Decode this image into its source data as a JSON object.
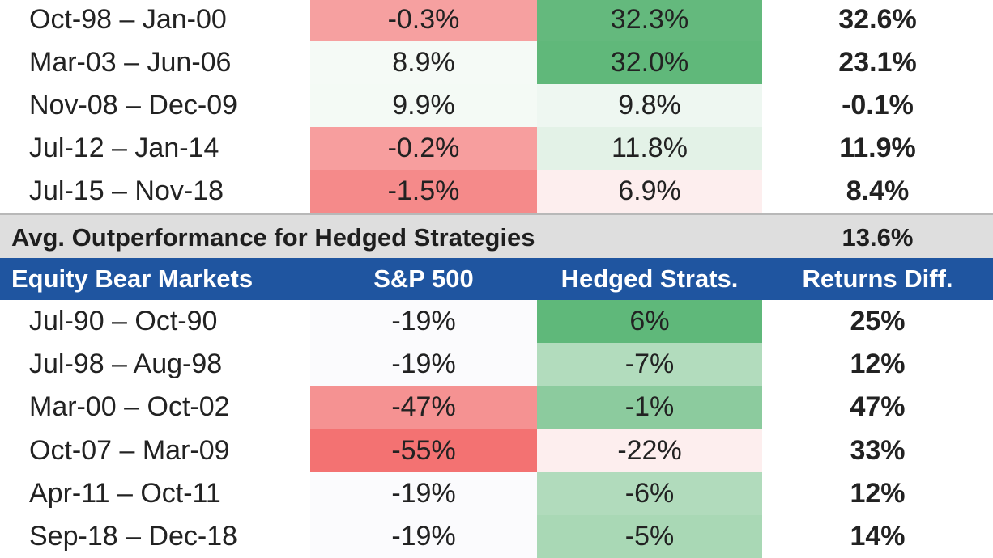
{
  "chart_data": {
    "type": "table",
    "top_rows": [
      {
        "period": "Oct-98 – Jan-00",
        "sp500": "-0.3%",
        "hedged": "32.3%",
        "diff": "32.6%"
      },
      {
        "period": "Mar-03 – Jun-06",
        "sp500": "8.9%",
        "hedged": "32.0%",
        "diff": "23.1%"
      },
      {
        "period": "Nov-08 – Dec-09",
        "sp500": "9.9%",
        "hedged": "9.8%",
        "diff": "-0.1%"
      },
      {
        "period": "Jul-12 – Jan-14",
        "sp500": "-0.2%",
        "hedged": "11.8%",
        "diff": "11.9%"
      },
      {
        "period": "Jul-15 – Nov-18",
        "sp500": "-1.5%",
        "hedged": "6.9%",
        "diff": "8.4%"
      }
    ],
    "summary": {
      "label": "Avg. Outperformance for Hedged Strategies",
      "value": "13.6%"
    },
    "header": {
      "period": "Equity Bear Markets",
      "sp500": "S&P 500",
      "hedged": "Hedged Strats.",
      "diff": "Returns Diff."
    },
    "bottom_rows": [
      {
        "period": "Jul-90 – Oct-90",
        "sp500": "-19%",
        "hedged": "6%",
        "diff": "25%"
      },
      {
        "period": "Jul-98 – Aug-98",
        "sp500": "-19%",
        "hedged": "-7%",
        "diff": "12%"
      },
      {
        "period": "Mar-00 – Oct-02",
        "sp500": "-47%",
        "hedged": "-1%",
        "diff": "47%"
      },
      {
        "period": "Oct-07 – Mar-09",
        "sp500": "-55%",
        "hedged": "-22%",
        "diff": "33%"
      },
      {
        "period": "Apr-11 – Oct-11",
        "sp500": "-19%",
        "hedged": "-6%",
        "diff": "12%"
      },
      {
        "period": "Sep-18 – Dec-18",
        "sp500": "-19%",
        "hedged": "-5%",
        "diff": "14%"
      }
    ]
  },
  "colors": {
    "header_bg": "#1f55a0",
    "summary_bg": "#dedede",
    "top_rows": [
      {
        "sp500": "#f6a0a0",
        "hedged": "#64b97d"
      },
      {
        "sp500": "#f5faf6",
        "hedged": "#60b87a"
      },
      {
        "sp500": "#f4faf5",
        "hedged": "#eef7f1"
      },
      {
        "sp500": "#f79e9e",
        "hedged": "#e3f2e7"
      },
      {
        "sp500": "#f58a8a",
        "hedged": "#fdeeee"
      }
    ],
    "bottom_rows": [
      {
        "sp500": "#fbfbfd",
        "hedged": "#5fb87a"
      },
      {
        "sp500": "#fbfbfd",
        "hedged": "#b2dcbd"
      },
      {
        "sp500": "#f59292",
        "hedged": "#8ccb9e"
      },
      {
        "sp500": "#f37272",
        "hedged": "#fdeeee"
      },
      {
        "sp500": "#fbfbfd",
        "hedged": "#b1dbbc"
      },
      {
        "sp500": "#fbfbfd",
        "hedged": "#a9d8b5"
      }
    ]
  }
}
